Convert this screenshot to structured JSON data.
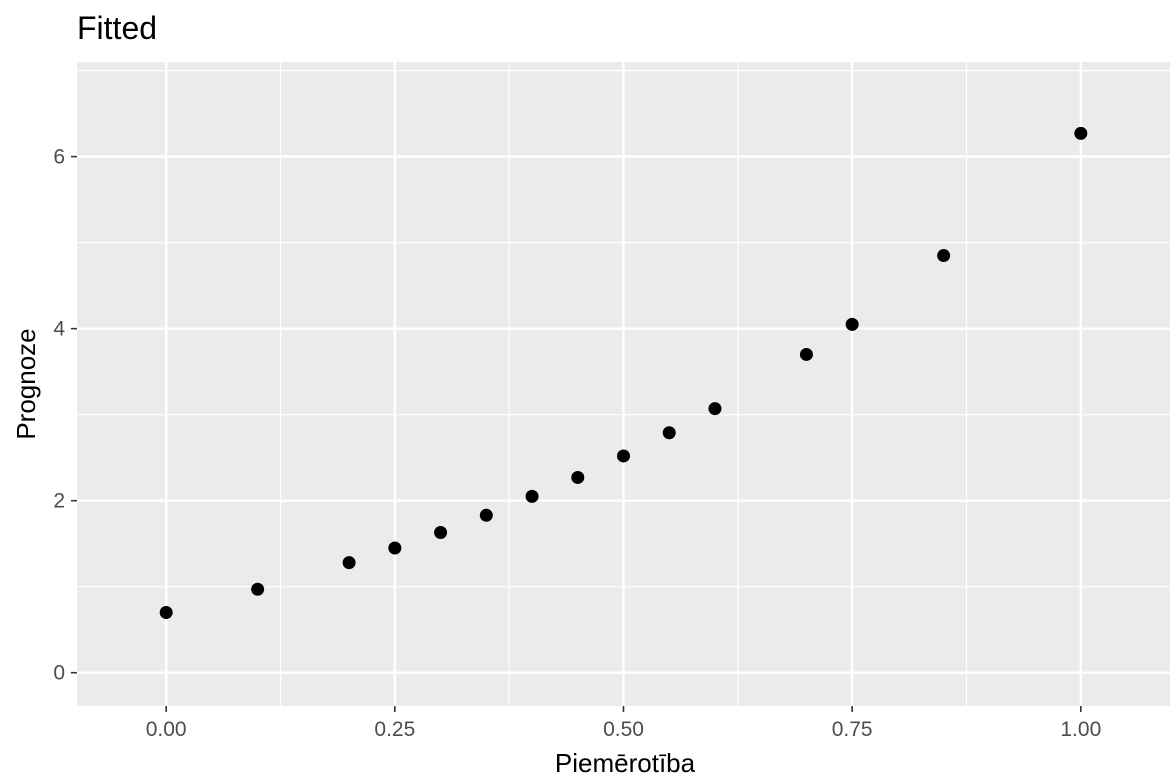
{
  "chart_data": {
    "type": "scatter",
    "title": "Fitted",
    "xlabel": "Piemērotība",
    "ylabel": "Prognoze",
    "xlim": [
      -0.0975,
      1.0975
    ],
    "ylim": [
      -0.387,
      7.1
    ],
    "x_ticks": [
      {
        "value": 0.0,
        "label": "0.00"
      },
      {
        "value": 0.25,
        "label": "0.25"
      },
      {
        "value": 0.5,
        "label": "0.50"
      },
      {
        "value": 0.75,
        "label": "0.75"
      },
      {
        "value": 1.0,
        "label": "1.00"
      }
    ],
    "x_minor": [
      0.125,
      0.375,
      0.625,
      0.875
    ],
    "y_ticks": [
      {
        "value": 0,
        "label": "0"
      },
      {
        "value": 2,
        "label": "2"
      },
      {
        "value": 4,
        "label": "4"
      },
      {
        "value": 6,
        "label": "6"
      }
    ],
    "y_minor": [
      1,
      3,
      5,
      7
    ],
    "grid": true,
    "panel_color": "#ebebeb",
    "grid_color": "#ffffff",
    "point_color": "#000000",
    "points": [
      {
        "x": 0.0,
        "y": 0.7
      },
      {
        "x": 0.1,
        "y": 0.97
      },
      {
        "x": 0.2,
        "y": 1.28
      },
      {
        "x": 0.25,
        "y": 1.45
      },
      {
        "x": 0.3,
        "y": 1.63
      },
      {
        "x": 0.35,
        "y": 1.83
      },
      {
        "x": 0.4,
        "y": 2.05
      },
      {
        "x": 0.45,
        "y": 2.27
      },
      {
        "x": 0.5,
        "y": 2.52
      },
      {
        "x": 0.55,
        "y": 2.79
      },
      {
        "x": 0.6,
        "y": 3.07
      },
      {
        "x": 0.7,
        "y": 3.7
      },
      {
        "x": 0.75,
        "y": 4.05
      },
      {
        "x": 0.85,
        "y": 4.85
      },
      {
        "x": 1.0,
        "y": 6.27
      }
    ]
  }
}
